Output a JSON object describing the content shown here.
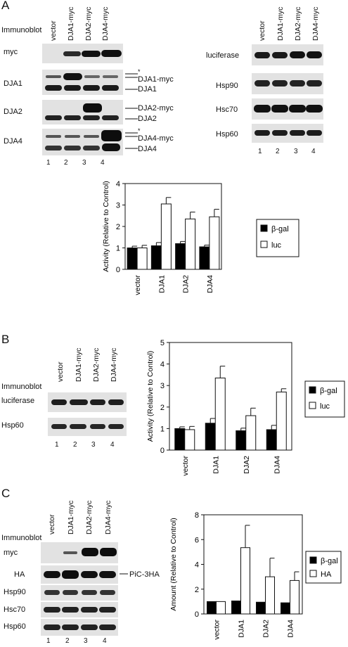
{
  "panel_a": {
    "letter": "A",
    "immunoblot_label": "Immunoblot",
    "left_lanes": [
      "vector",
      "DJA1-myc",
      "DJA2-myc",
      "DJA4-myc"
    ],
    "right_lanes": [
      "vector",
      "DJA1-myc",
      "DJA2-myc",
      "DJA4-myc"
    ],
    "left_rows": [
      "myc",
      "DJA1",
      "DJA2",
      "DJA4"
    ],
    "right_rows": [
      "luciferase",
      "Hsp90",
      "Hsc70",
      "Hsp60"
    ],
    "band_labels": {
      "dja1_star": "*",
      "dja1_myc": "DJA1-myc",
      "dja1": "DJA1",
      "dja2_myc": "DJA2-myc",
      "dja2": "DJA2",
      "dja4_star": "*",
      "dja4_myc": "DJA4-myc",
      "dja4": "DJA4"
    },
    "lane_numbers": [
      "1",
      "2",
      "3",
      "4"
    ]
  },
  "panel_b": {
    "letter": "B",
    "immunoblot_label": "Immunoblot",
    "lanes": [
      "vector",
      "DJA1-myc",
      "DJA2-myc",
      "DJA4-myc"
    ],
    "rows": [
      "luciferase",
      "Hsp60"
    ],
    "lane_numbers": [
      "1",
      "2",
      "3",
      "4"
    ]
  },
  "panel_c": {
    "letter": "C",
    "immunoblot_label": "Immunoblot",
    "lanes": [
      "vector",
      "DJA1-myc",
      "DJA2-myc",
      "DJA4-myc"
    ],
    "rows": [
      "myc",
      "HA",
      "Hsp90",
      "Hsc70",
      "Hsp60"
    ],
    "ha_side_label": "PiC-3HA",
    "lane_numbers": [
      "1",
      "2",
      "3",
      "4"
    ]
  },
  "colors": {
    "bar_beta_gal": "#000000",
    "bar_other": "#ffffff",
    "blot_bg": "#e2e2e2",
    "band": "#1a1a1a"
  },
  "chart_data": [
    {
      "type": "bar",
      "ylabel": "Activity (Relative to Control)",
      "categories": [
        "vector",
        "DJA1",
        "DJA2",
        "DJA4"
      ],
      "ylim": [
        0,
        4
      ],
      "yticks": [
        "0",
        "1",
        "2",
        "3",
        "4"
      ],
      "legend_position": "right",
      "series": [
        {
          "name": "β-gal",
          "values": [
            1.0,
            1.1,
            1.2,
            1.05
          ],
          "errors": [
            0.08,
            0.15,
            0.1,
            0.08
          ]
        },
        {
          "name": "luc",
          "values": [
            1.0,
            3.05,
            2.35,
            2.45
          ],
          "errors": [
            0.12,
            0.3,
            0.32,
            0.35
          ]
        }
      ]
    },
    {
      "type": "bar",
      "ylabel": "Activity (Relative to Control)",
      "categories": [
        "vector",
        "DJA1",
        "DJA2",
        "DJA4"
      ],
      "ylim": [
        0,
        5
      ],
      "yticks": [
        "0",
        "1",
        "2",
        "3",
        "4",
        "5"
      ],
      "legend_position": "right",
      "series": [
        {
          "name": "β-gal",
          "values": [
            1.0,
            1.25,
            0.9,
            0.95
          ],
          "errors": [
            0.08,
            0.22,
            0.12,
            0.2
          ]
        },
        {
          "name": "luc",
          "values": [
            0.95,
            3.35,
            1.6,
            2.7
          ],
          "errors": [
            0.15,
            0.55,
            0.35,
            0.15
          ]
        }
      ]
    },
    {
      "type": "bar",
      "ylabel": "Amount (Relative to Control)",
      "categories": [
        "vector",
        "DJA1",
        "DJA2",
        "DJA4"
      ],
      "ylim": [
        0,
        8
      ],
      "yticks": [
        "0",
        "2",
        "4",
        "6",
        "8"
      ],
      "legend_position": "right",
      "series": [
        {
          "name": "β-gal",
          "values": [
            1.0,
            1.05,
            0.95,
            0.9
          ],
          "errors": [
            0,
            0,
            0,
            0
          ]
        },
        {
          "name": "HA",
          "values": [
            1.0,
            5.35,
            3.0,
            2.7
          ],
          "errors": [
            0,
            1.8,
            1.5,
            0.7
          ]
        }
      ]
    }
  ]
}
